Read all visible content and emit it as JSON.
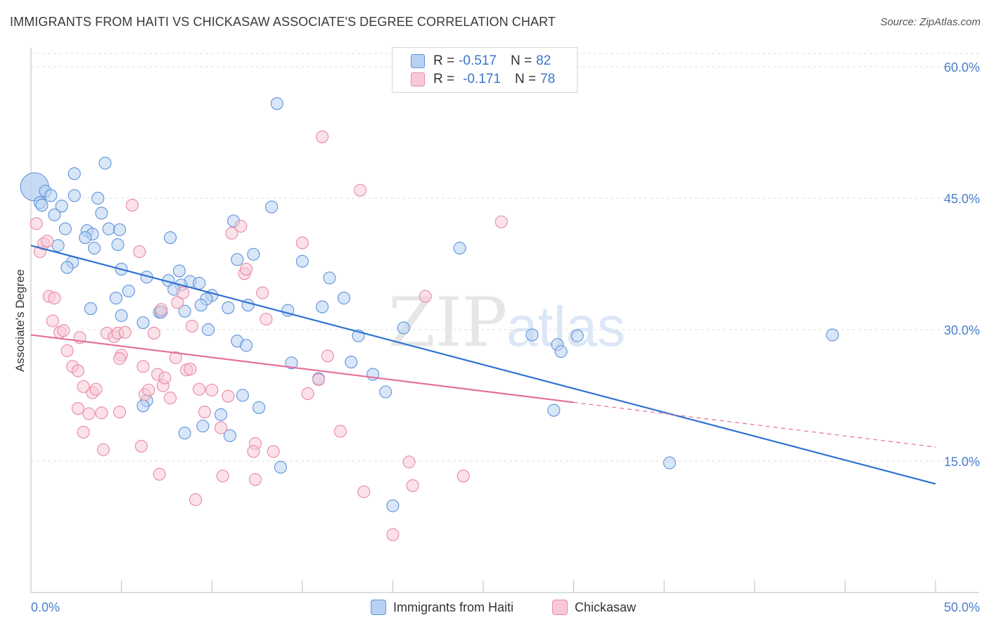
{
  "title": "IMMIGRANTS FROM HAITI VS CHICKASAW ASSOCIATE'S DEGREE CORRELATION CHART",
  "source": "Source: ZipAtlas.com",
  "watermark": {
    "zip": "ZIP",
    "atlas": "atlas"
  },
  "colors": {
    "blue_fill": "#b8d1f3",
    "blue_stroke": "#5f93da",
    "blue_line": "#2f72d0",
    "pink_fill": "#f8c8d6",
    "pink_stroke": "#e88aa6",
    "pink_line": "#e4709a",
    "tick_label": "#4a7fcc",
    "grid": "#dcdcdc"
  },
  "legend": {
    "rows": [
      {
        "r_label": "R =",
        "r_value": "-0.517",
        "n_label": "N =",
        "n_value": "82"
      },
      {
        "r_label": "R =",
        "r_value": "-0.171",
        "n_label": "N =",
        "n_value": "78"
      }
    ]
  },
  "bottom_legend": [
    "Immigrants from Haiti",
    "Chickasaw"
  ],
  "chart_data": {
    "type": "scatter",
    "title": "IMMIGRANTS FROM HAITI VS CHICKASAW ASSOCIATE'S DEGREE CORRELATION CHART",
    "xlabel": "",
    "ylabel": "Associate's Degree",
    "xlim": [
      0,
      50
    ],
    "ylim": [
      0,
      62
    ],
    "x_tick_labels": [
      "0.0%",
      "50.0%"
    ],
    "y_ticks": [
      15,
      30,
      45,
      60
    ],
    "y_tick_labels": [
      "15.0%",
      "30.0%",
      "45.0%",
      "60.0%"
    ],
    "grid": true,
    "legend_position": "top-center",
    "series": [
      {
        "name": "Immigrants from Haiti",
        "R": -0.517,
        "N": 82,
        "trend": {
          "x": [
            0,
            50
          ],
          "y": [
            39.6,
            12.4
          ]
        },
        "points": [
          [
            0.2,
            46.3
          ],
          [
            0.5,
            44.5
          ],
          [
            0.8,
            45.8
          ],
          [
            1.1,
            45.3
          ],
          [
            0.6,
            44.2
          ],
          [
            1.7,
            44.1
          ],
          [
            1.3,
            43.1
          ],
          [
            2.4,
            45.3
          ],
          [
            2.4,
            47.8
          ],
          [
            4.1,
            49.0
          ],
          [
            4.3,
            41.5
          ],
          [
            3.9,
            43.3
          ],
          [
            3.7,
            45.0
          ],
          [
            3.1,
            41.3
          ],
          [
            3.4,
            40.9
          ],
          [
            1.9,
            41.5
          ],
          [
            3.0,
            40.5
          ],
          [
            1.5,
            39.6
          ],
          [
            3.5,
            39.3
          ],
          [
            2.3,
            37.7
          ],
          [
            2.0,
            37.1
          ],
          [
            4.8,
            39.7
          ],
          [
            4.9,
            41.4
          ],
          [
            7.7,
            40.5
          ],
          [
            5.0,
            36.9
          ],
          [
            6.4,
            36.0
          ],
          [
            7.6,
            35.6
          ],
          [
            8.2,
            36.7
          ],
          [
            8.8,
            35.5
          ],
          [
            8.3,
            35.1
          ],
          [
            9.3,
            35.3
          ],
          [
            7.9,
            34.6
          ],
          [
            5.4,
            34.4
          ],
          [
            4.7,
            33.6
          ],
          [
            10.0,
            33.9
          ],
          [
            9.7,
            33.5
          ],
          [
            10.9,
            32.5
          ],
          [
            9.4,
            32.8
          ],
          [
            8.5,
            32.1
          ],
          [
            7.1,
            32.0
          ],
          [
            7.2,
            32.0
          ],
          [
            5.0,
            31.6
          ],
          [
            3.3,
            32.4
          ],
          [
            6.2,
            30.8
          ],
          [
            9.8,
            30.0
          ],
          [
            11.2,
            42.4
          ],
          [
            11.4,
            38.0
          ],
          [
            12.3,
            38.6
          ],
          [
            13.3,
            44.0
          ],
          [
            12.0,
            32.8
          ],
          [
            14.2,
            32.2
          ],
          [
            15.0,
            37.8
          ],
          [
            16.5,
            35.9
          ],
          [
            16.1,
            32.6
          ],
          [
            13.6,
            55.8
          ],
          [
            17.3,
            33.6
          ],
          [
            11.4,
            28.7
          ],
          [
            11.9,
            28.2
          ],
          [
            18.1,
            29.3
          ],
          [
            14.4,
            26.2
          ],
          [
            17.7,
            26.3
          ],
          [
            15.9,
            24.4
          ],
          [
            18.9,
            24.9
          ],
          [
            11.7,
            22.5
          ],
          [
            6.4,
            21.9
          ],
          [
            6.2,
            21.3
          ],
          [
            12.6,
            21.1
          ],
          [
            10.5,
            20.3
          ],
          [
            19.6,
            22.9
          ],
          [
            9.5,
            19.0
          ],
          [
            8.5,
            18.2
          ],
          [
            11.0,
            17.9
          ],
          [
            13.8,
            14.3
          ],
          [
            20.0,
            9.9
          ],
          [
            20.6,
            30.2
          ],
          [
            23.7,
            39.3
          ],
          [
            27.7,
            29.4
          ],
          [
            29.1,
            28.3
          ],
          [
            29.3,
            27.5
          ],
          [
            30.2,
            29.3
          ],
          [
            28.9,
            20.8
          ],
          [
            35.3,
            14.8
          ],
          [
            44.3,
            29.4
          ]
        ]
      },
      {
        "name": "Chickasaw",
        "R": -0.171,
        "N": 78,
        "trend": {
          "x": [
            0,
            30
          ],
          "y": [
            29.4,
            21.7
          ]
        },
        "trend_dashed": {
          "x": [
            30,
            50
          ],
          "y": [
            21.7,
            16.6
          ]
        },
        "points": [
          [
            0.3,
            42.1
          ],
          [
            0.5,
            38.9
          ],
          [
            0.7,
            39.8
          ],
          [
            0.9,
            40.1
          ],
          [
            1.0,
            33.8
          ],
          [
            1.3,
            33.6
          ],
          [
            1.2,
            31.0
          ],
          [
            1.6,
            29.7
          ],
          [
            1.8,
            29.9
          ],
          [
            2.0,
            27.6
          ],
          [
            2.3,
            25.8
          ],
          [
            2.6,
            25.3
          ],
          [
            2.7,
            29.1
          ],
          [
            3.4,
            22.8
          ],
          [
            3.6,
            23.2
          ],
          [
            2.6,
            21.0
          ],
          [
            3.2,
            20.4
          ],
          [
            3.9,
            20.5
          ],
          [
            2.9,
            18.3
          ],
          [
            4.0,
            16.3
          ],
          [
            4.2,
            29.6
          ],
          [
            4.6,
            29.2
          ],
          [
            4.8,
            29.6
          ],
          [
            5.2,
            29.7
          ],
          [
            5.0,
            27.1
          ],
          [
            4.9,
            26.7
          ],
          [
            5.6,
            44.2
          ],
          [
            6.0,
            38.9
          ],
          [
            6.2,
            25.8
          ],
          [
            6.3,
            22.6
          ],
          [
            6.5,
            23.1
          ],
          [
            6.8,
            29.6
          ],
          [
            7.0,
            24.9
          ],
          [
            7.2,
            32.3
          ],
          [
            7.3,
            23.6
          ],
          [
            7.4,
            24.5
          ],
          [
            7.7,
            22.2
          ],
          [
            8.0,
            26.8
          ],
          [
            8.1,
            33.1
          ],
          [
            8.4,
            34.2
          ],
          [
            8.6,
            25.4
          ],
          [
            8.8,
            25.5
          ],
          [
            8.9,
            30.4
          ],
          [
            9.3,
            23.2
          ],
          [
            9.6,
            20.6
          ],
          [
            10.0,
            23.1
          ],
          [
            10.5,
            18.8
          ],
          [
            10.9,
            22.4
          ],
          [
            11.1,
            41.0
          ],
          [
            11.6,
            41.8
          ],
          [
            11.8,
            36.4
          ],
          [
            11.9,
            36.9
          ],
          [
            12.4,
            17.0
          ],
          [
            12.3,
            16.1
          ],
          [
            12.8,
            34.2
          ],
          [
            13.0,
            31.2
          ],
          [
            13.4,
            16.1
          ],
          [
            15.0,
            39.9
          ],
          [
            15.3,
            22.7
          ],
          [
            15.9,
            24.3
          ],
          [
            16.4,
            27.0
          ],
          [
            17.1,
            18.4
          ],
          [
            18.2,
            45.9
          ],
          [
            18.4,
            11.5
          ],
          [
            20.0,
            6.6
          ],
          [
            20.9,
            14.9
          ],
          [
            21.1,
            12.2
          ],
          [
            21.8,
            33.8
          ],
          [
            23.9,
            13.3
          ],
          [
            26.0,
            42.3
          ],
          [
            16.1,
            52.0
          ],
          [
            12.4,
            12.9
          ],
          [
            9.1,
            10.6
          ],
          [
            10.6,
            13.3
          ],
          [
            7.1,
            13.5
          ],
          [
            6.1,
            16.7
          ],
          [
            4.9,
            20.6
          ],
          [
            2.9,
            23.5
          ]
        ]
      }
    ]
  }
}
